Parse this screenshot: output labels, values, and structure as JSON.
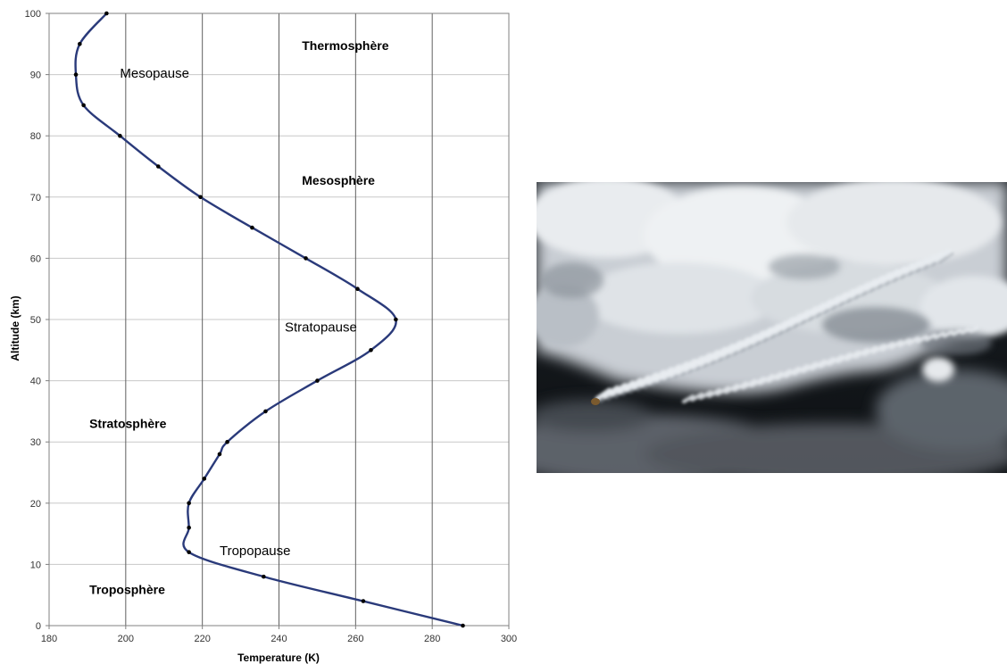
{
  "chart_data": {
    "type": "line",
    "xlabel": "Temperature (K)",
    "ylabel": "Altitude (km)",
    "xlim": [
      180,
      300
    ],
    "ylim": [
      0,
      100
    ],
    "xticks": [
      180,
      200,
      220,
      240,
      260,
      280,
      300
    ],
    "yticks": [
      0,
      10,
      20,
      30,
      40,
      50,
      60,
      70,
      80,
      90,
      100
    ],
    "grid": "vertical and horizontal",
    "line_color": "#2a3a7a",
    "marker_color": "#000000",
    "series": [
      {
        "x": [
          288,
          262,
          236,
          216.5,
          216.5,
          216.5,
          220.5,
          224.5,
          226.5,
          236.5,
          250,
          264,
          270.5,
          260.5,
          247,
          233,
          219.5,
          208.5,
          198.5,
          189,
          187,
          188,
          195
        ],
        "y": [
          0,
          4,
          8,
          12,
          16,
          20,
          24,
          28,
          30,
          35,
          40,
          45,
          50,
          55,
          60,
          65,
          70,
          75,
          80,
          85,
          90,
          95,
          100
        ]
      }
    ],
    "annotations": [
      {
        "text": "Thermosphère",
        "x": 246,
        "y": 94,
        "bold": true
      },
      {
        "text": "Mesopause",
        "x": 198.5,
        "y": 89.5,
        "bold": false
      },
      {
        "text": "Mesosphère",
        "x": 246,
        "y": 72,
        "bold": true
      },
      {
        "text": "Stratopause",
        "x": 241.5,
        "y": 48,
        "bold": false
      },
      {
        "text": "Stratosphère",
        "x": 190.5,
        "y": 32.3,
        "bold": true
      },
      {
        "text": "Tropopause",
        "x": 224.5,
        "y": 11.5,
        "bold": false
      },
      {
        "text": "Troposphère",
        "x": 190.5,
        "y": 5.2,
        "bold": true
      }
    ]
  },
  "photo": {
    "subject": "satellite image of wave clouds over dark sea",
    "colors": {
      "cloud": "#e8ecf0",
      "cloud_shadow": "#9aa3ab",
      "sea": "#14181c",
      "haze": "#5b6168"
    }
  }
}
